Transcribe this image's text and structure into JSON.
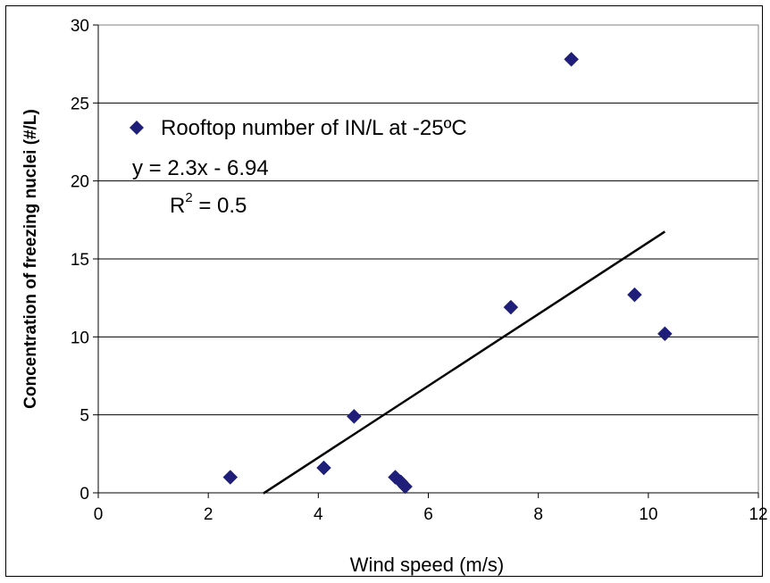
{
  "chart_data": {
    "type": "scatter",
    "xlabel": "Wind speed (m/s)",
    "ylabel": "Concentration of freezing nuclei (#/L)",
    "xlim": [
      0,
      12
    ],
    "ylim": [
      0,
      30
    ],
    "xticks": [
      0,
      2,
      4,
      6,
      8,
      10,
      12
    ],
    "yticks": [
      0,
      5,
      10,
      15,
      20,
      25,
      30
    ],
    "x_tick_labels": [
      "0",
      "2",
      "4",
      "6",
      "8",
      "10",
      "12"
    ],
    "y_tick_labels": [
      "0",
      "5",
      "10",
      "15",
      "20",
      "25",
      "30"
    ],
    "grid": "horizontal",
    "legend_position": "top-left",
    "series": [
      {
        "name": "Rooftop number of IN/L at -25ºC",
        "color": "#1f1f7a",
        "marker": "diamond",
        "points": [
          {
            "x": 2.4,
            "y": 1.0
          },
          {
            "x": 4.1,
            "y": 1.6
          },
          {
            "x": 4.65,
            "y": 4.9
          },
          {
            "x": 5.4,
            "y": 1.0
          },
          {
            "x": 5.5,
            "y": 0.7
          },
          {
            "x": 5.58,
            "y": 0.4
          },
          {
            "x": 7.5,
            "y": 11.9
          },
          {
            "x": 8.6,
            "y": 27.8
          },
          {
            "x": 9.75,
            "y": 12.7
          },
          {
            "x": 10.3,
            "y": 10.2
          }
        ]
      }
    ],
    "trendline": {
      "equation": "y = 2.3x - 6.94",
      "r2_label": "R",
      "r2_sup": "2",
      "r2_value": " = 0.5",
      "slope": 2.3,
      "intercept": -6.94,
      "x_range": [
        3.0,
        10.3
      ],
      "color": "#000000"
    }
  }
}
